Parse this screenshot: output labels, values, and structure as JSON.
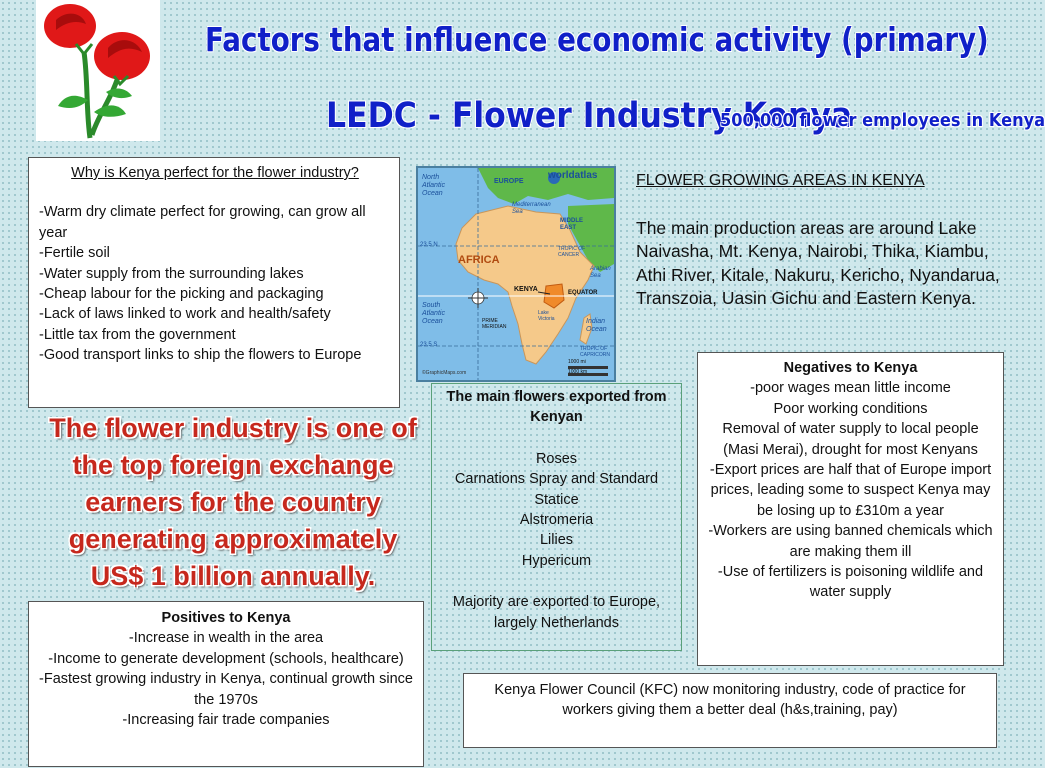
{
  "title_main": "Factors that influence economic activity (primary)",
  "title_sub": "LEDC - Flower Industry Kenya",
  "employees_note": "500,000 flower employees in Kenya",
  "why_box": {
    "heading": "Why is Kenya perfect for the flower industry?",
    "items": [
      "-Warm dry climate perfect for growing, can grow all year",
      "-Fertile soil",
      "-Water supply from the surrounding lakes",
      "-Cheap labour for the picking and packaging",
      "-Lack of laws linked to work and health/safety",
      "-Little tax from the government",
      "-Good transport links to ship the flowers to Europe"
    ]
  },
  "map": {
    "brand": "worldatlas",
    "labels": {
      "europe": "EUROPE",
      "africa": "AFRICA",
      "kenya": "KENYA",
      "north_atlantic": "North Atlantic Ocean",
      "south_atlantic": "South Atlantic Ocean",
      "indian_ocean": "Indian Ocean",
      "middle_east": "MIDDLE EAST",
      "mediterranean": "Mediterranean Sea",
      "arabian_sea": "Arabian Sea",
      "tropic_cancer": "TROPIC OF CANCER",
      "tropic_capricorn": "TROPIC OF CAPRICORN",
      "equator": "EQUATOR",
      "prime_meridian": "PRIME MERIDIAN",
      "lake_victoria": "Lake Victoria",
      "lat_n": "23.5 N",
      "lat_s": "23.5 S",
      "scale_mi": "1000 mi",
      "scale_km": "1000 km",
      "credit": "©GraphicMaps.com"
    }
  },
  "areas": {
    "heading": "FLOWER GROWING AREAS IN KENYA",
    "text": "The main production areas are around Lake Naivasha, Mt. Kenya, Nairobi, Thika, Kiambu, Athi River, Kitale, Nakuru, Kericho, Nyandarua, Transzoia, Uasin Gichu and Eastern Kenya."
  },
  "foreign_exchange": "The flower industry is one of the top foreign exchange earners for the country generating approximately US$ 1 billion annually.",
  "flowers": {
    "heading": "The main flowers exported from Kenyan",
    "items": [
      "Roses",
      "Carnations Spray and Standard",
      "Statice",
      "Alstromeria",
      "Lilies",
      "Hypericum"
    ],
    "note": "Majority are exported to Europe, largely Netherlands"
  },
  "negatives": {
    "heading": "Negatives to Kenya",
    "items": [
      "-poor wages mean little income",
      "Poor working conditions",
      "Removal of water supply to local people (Masi Merai), drought for most Kenyans",
      "-Export prices are half that of Europe import prices, leading some to suspect Kenya may be losing up to £310m a year",
      "-Workers are using banned chemicals which are making them ill",
      "-Use of fertilizers is poisoning wildlife and water supply"
    ]
  },
  "positives": {
    "heading": "Positives to Kenya",
    "items": [
      "-Increase in wealth in the area",
      "-Income to generate development (schools, healthcare)",
      "-Fastest growing industry in Kenya, continual growth since the 1970s",
      "-Increasing fair trade companies"
    ]
  },
  "kfc_note": "Kenya Flower Council (KFC) now monitoring industry, code of practice for workers giving them a better deal (h&s,training, pay)"
}
